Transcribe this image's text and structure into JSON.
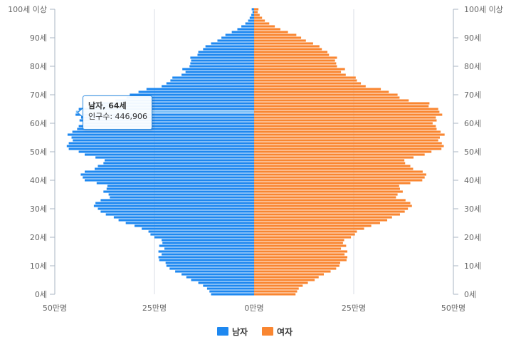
{
  "chart_data": {
    "type": "bar",
    "orientation": "horizontal-pyramid",
    "title": "",
    "xlabel": "",
    "ylabel": "",
    "x_range_unit": "people",
    "xlim": [
      -500000,
      500000
    ],
    "x_ticks": [
      {
        "value": -500000,
        "label": "50만명"
      },
      {
        "value": -250000,
        "label": "25만명"
      },
      {
        "value": 0,
        "label": "0만명"
      },
      {
        "value": 250000,
        "label": "25만명"
      },
      {
        "value": 500000,
        "label": "50만명"
      }
    ],
    "y_ticks": [
      {
        "value": 0,
        "label": "0세"
      },
      {
        "value": 10,
        "label": "10세"
      },
      {
        "value": 20,
        "label": "20세"
      },
      {
        "value": 30,
        "label": "30세"
      },
      {
        "value": 40,
        "label": "40세"
      },
      {
        "value": 50,
        "label": "50세"
      },
      {
        "value": 60,
        "label": "60세"
      },
      {
        "value": 70,
        "label": "70세"
      },
      {
        "value": 80,
        "label": "80세"
      },
      {
        "value": 90,
        "label": "90세"
      },
      {
        "value": 100,
        "label": "100세 이상"
      }
    ],
    "categories": [
      "0",
      "1",
      "2",
      "3",
      "4",
      "5",
      "6",
      "7",
      "8",
      "9",
      "10",
      "11",
      "12",
      "13",
      "14",
      "15",
      "16",
      "17",
      "18",
      "19",
      "20",
      "21",
      "22",
      "23",
      "24",
      "25",
      "26",
      "27",
      "28",
      "29",
      "30",
      "31",
      "32",
      "33",
      "34",
      "35",
      "36",
      "37",
      "38",
      "39",
      "40",
      "41",
      "42",
      "43",
      "44",
      "45",
      "46",
      "47",
      "48",
      "49",
      "50",
      "51",
      "52",
      "53",
      "54",
      "55",
      "56",
      "57",
      "58",
      "59",
      "60",
      "61",
      "62",
      "63",
      "64",
      "65",
      "66",
      "67",
      "68",
      "69",
      "70",
      "71",
      "72",
      "73",
      "74",
      "75",
      "76",
      "77",
      "78",
      "79",
      "80",
      "81",
      "82",
      "83",
      "84",
      "85",
      "86",
      "87",
      "88",
      "89",
      "90",
      "91",
      "92",
      "93",
      "94",
      "95",
      "96",
      "97",
      "98",
      "99",
      "100+"
    ],
    "series": [
      {
        "name": "남자",
        "color": "#1e88f0",
        "values": [
          108000,
          112000,
          118000,
          128000,
          140000,
          158000,
          170000,
          182000,
          198000,
          212000,
          220000,
          222000,
          238000,
          240000,
          232000,
          240000,
          225000,
          238000,
          230000,
          232000,
          250000,
          260000,
          265000,
          282000,
          300000,
          322000,
          340000,
          352000,
          372000,
          385000,
          392000,
          402000,
          398000,
          385000,
          362000,
          365000,
          378000,
          370000,
          368000,
          395000,
          425000,
          430000,
          435000,
          425000,
          400000,
          392000,
          378000,
          375000,
          398000,
          425000,
          440000,
          465000,
          470000,
          465000,
          455000,
          458000,
          468000,
          456000,
          444000,
          440000,
          430000,
          438000,
          434000,
          448000,
          446906,
          440000,
          412000,
          410000,
          348000,
          320000,
          312000,
          290000,
          270000,
          232000,
          220000,
          210000,
          205000,
          182000,
          172000,
          180000,
          162000,
          160000,
          158000,
          160000,
          142000,
          140000,
          128000,
          122000,
          108000,
          92000,
          82000,
          72000,
          56000,
          42000,
          32000,
          22000,
          15000,
          11000,
          7000,
          4000,
          6000
        ]
      },
      {
        "name": "여자",
        "color": "#f98631",
        "values": [
          104000,
          108000,
          112000,
          122000,
          135000,
          152000,
          162000,
          175000,
          192000,
          206000,
          214000,
          216000,
          232000,
          234000,
          227000,
          234000,
          218000,
          231000,
          223000,
          226000,
          243000,
          253000,
          258000,
          276000,
          294000,
          316000,
          334000,
          346000,
          366000,
          378000,
          386000,
          396000,
          392000,
          380000,
          356000,
          360000,
          373000,
          366000,
          364000,
          392000,
          422000,
          428000,
          432000,
          423000,
          399000,
          392000,
          379000,
          377000,
          400000,
          428000,
          445000,
          470000,
          476000,
          471000,
          462000,
          466000,
          478000,
          468000,
          458000,
          456000,
          448000,
          458000,
          456000,
          472000,
          465000,
          462000,
          438000,
          440000,
          388000,
          365000,
          360000,
          338000,
          318000,
          280000,
          268000,
          258000,
          255000,
          230000,
          218000,
          228000,
          208000,
          206000,
          203000,
          208000,
          188000,
          184000,
          170000,
          164000,
          148000,
          130000,
          118000,
          106000,
          85000,
          66000,
          52000,
          38000,
          27000,
          20000,
          14000,
          9000,
          11000
        ]
      }
    ],
    "highlight": {
      "age_index": 64,
      "series": "남자"
    },
    "grid": true,
    "legend_position": "bottom-center"
  },
  "tooltip": {
    "title": "남자, 64세",
    "line": "인구수: 446,906"
  },
  "colors": {
    "male": "#1e88f0",
    "female": "#f98631",
    "highlight": "#7cc0f8",
    "grid": "#d9dee6",
    "axis": "#aab5c3"
  }
}
